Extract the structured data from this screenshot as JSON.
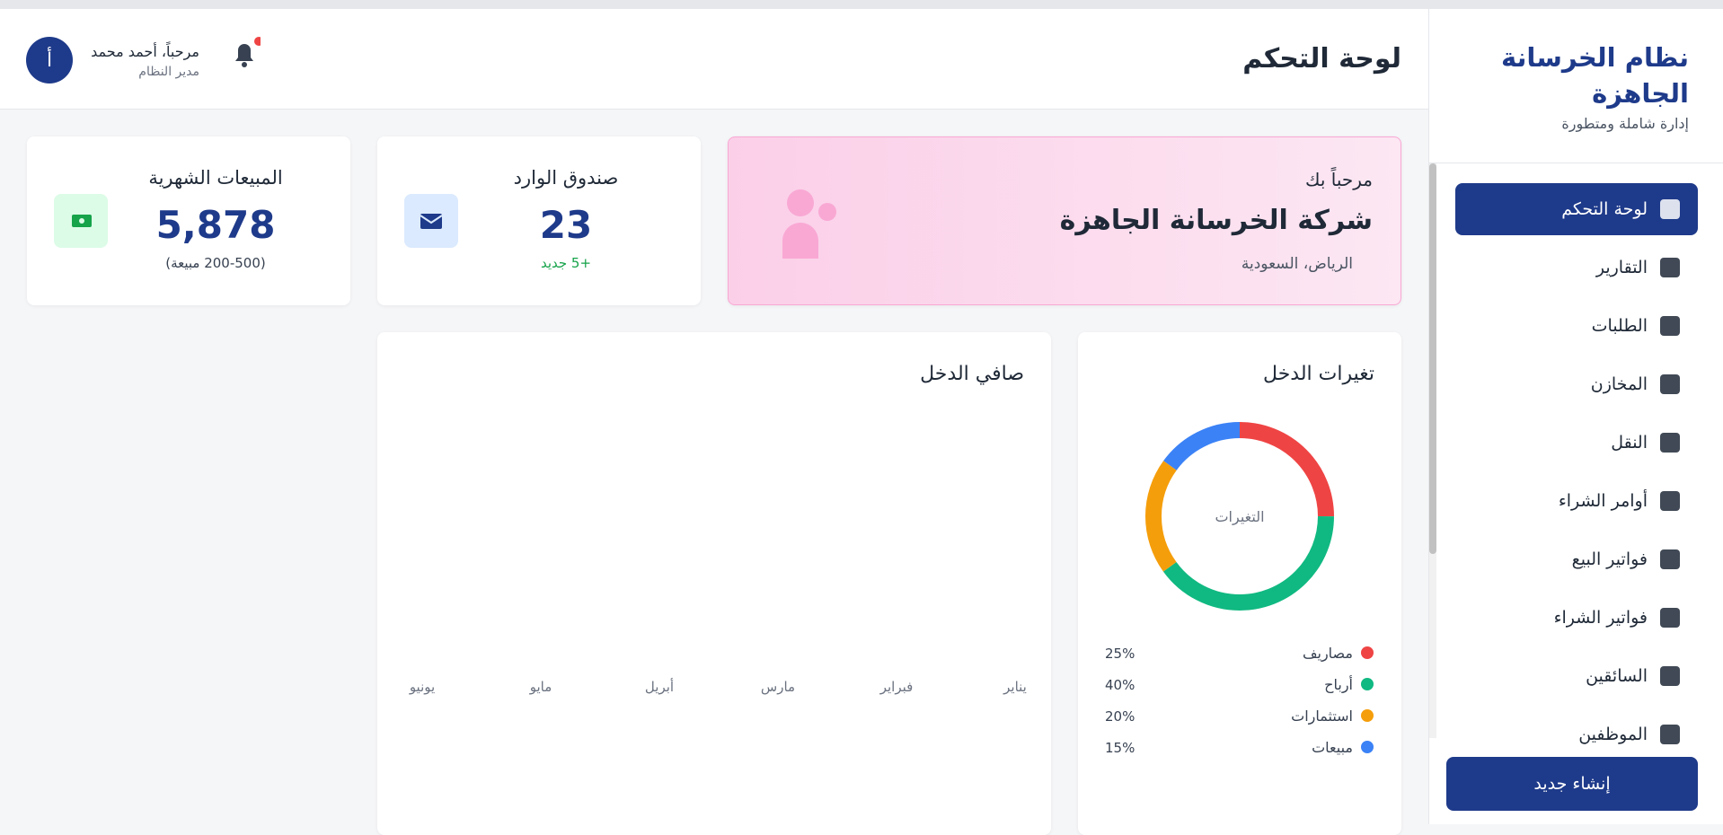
{
  "sidebar": {
    "title": "نظام الخرسانة الجاهزة",
    "subtitle": "إدارة شاملة ومتطورة",
    "nav": [
      "لوحة التحكم",
      "التقارير",
      "الطلبات",
      "المخازن",
      "النقل",
      "أوامر الشراء",
      "فواتير البيع",
      "فواتير الشراء",
      "السائقين",
      "الموظفين"
    ],
    "button": "إنشاء جديد"
  },
  "header": {
    "title": "لوحة التحكم",
    "user_greeting": "مرحباً، أحمد محمد",
    "user_role": "مدير النظام",
    "avatar": "أ"
  },
  "welcome": {
    "greeting": "مرحباً بك",
    "company": "شركة الخرسانة الجاهزة",
    "location": "الرياض، السعودية"
  },
  "inbox": {
    "title": "صندوق الوارد",
    "value": "23",
    "note": "+5 جديد"
  },
  "sales": {
    "title": "المبيعات الشهرية",
    "value": "5,878",
    "note": "(200-500 مبيعة)"
  },
  "chart_data": [
    {
      "type": "donut",
      "title": "تغيرات الدخل",
      "center_label": "التغيرات",
      "categories": [
        "مصاريف",
        "أرباح",
        "استثمارات",
        "مبيعات"
      ],
      "values": [
        25,
        40,
        20,
        15
      ],
      "value_labels": [
        "25%",
        "40%",
        "20%",
        "15%"
      ],
      "colors": [
        "#ef4444",
        "#10b981",
        "#f59e0b",
        "#3b82f6"
      ]
    },
    {
      "type": "bar",
      "title": "صافي الدخل",
      "categories": [
        "يناير",
        "فبراير",
        "مارس",
        "أبريل",
        "مايو",
        "يونيو"
      ]
    }
  ]
}
